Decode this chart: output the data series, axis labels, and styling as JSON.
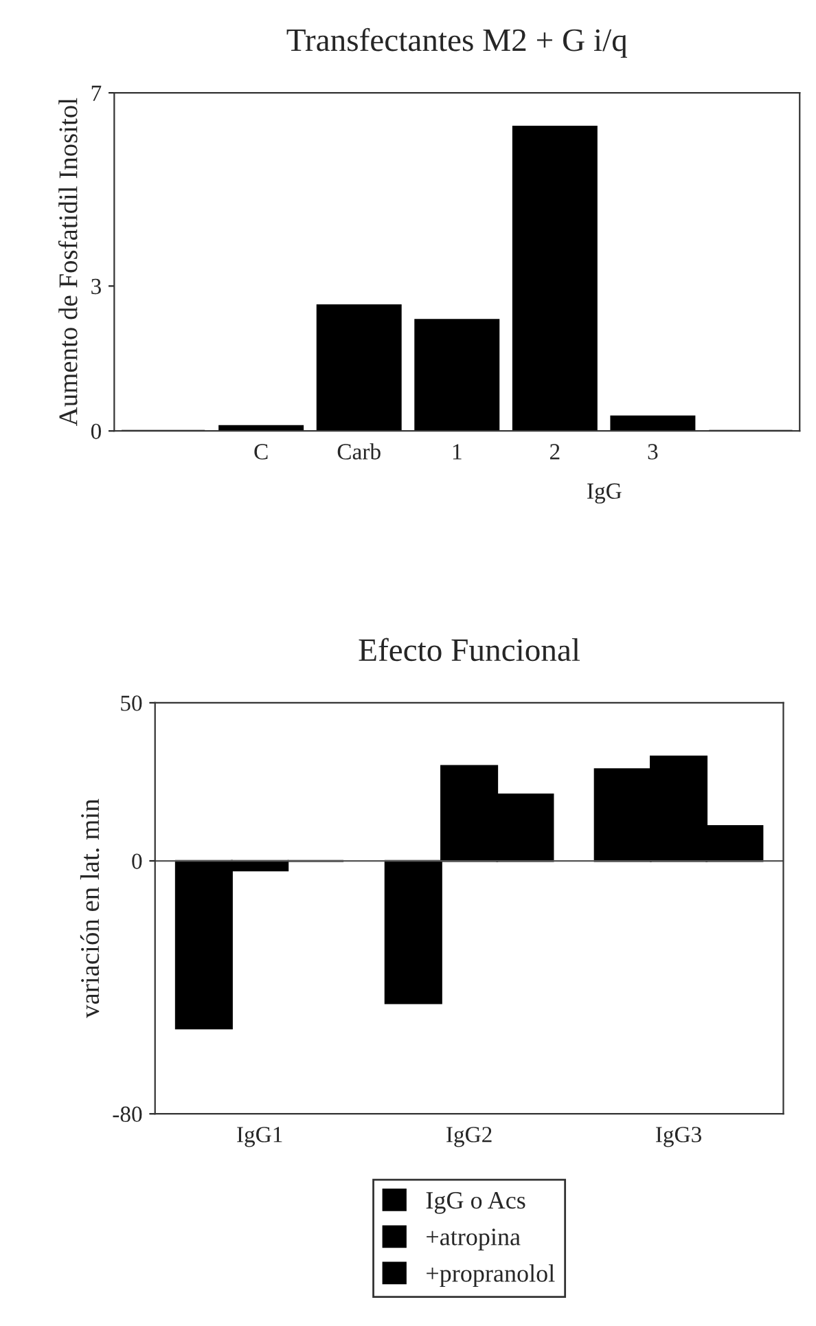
{
  "chart_data": [
    {
      "type": "bar",
      "title": "Transfectantes M2 + G i/q",
      "ylabel": "Aumento de Fosfatidil Inositol",
      "categories": [
        null,
        "C",
        "Carb",
        "1",
        "2",
        "3",
        null
      ],
      "values": [
        0,
        0.1,
        2.6,
        2.3,
        6.3,
        0.3,
        0
      ],
      "color": "#000000",
      "ylim": [
        0,
        7
      ],
      "yticks": [
        0,
        3,
        7
      ],
      "annotations": [
        "IgG"
      ]
    },
    {
      "type": "bar",
      "title": "Efecto Funcional",
      "ylabel": "variación en lat. min",
      "categories": [
        "IgG1",
        "IgG2",
        "IgG3"
      ],
      "ylim": [
        -80,
        50
      ],
      "yticks": [
        -80,
        0,
        50
      ],
      "legend": "bottom",
      "series": [
        {
          "name": "IgG o Acs",
          "color": "#000000",
          "values": [
            -53,
            -45,
            29
          ]
        },
        {
          "name": "+atropina",
          "color": "#000000",
          "values": [
            -3,
            30,
            33
          ]
        },
        {
          "name": "+propranolol",
          "color": "#000000",
          "values": [
            0,
            21,
            11
          ]
        }
      ]
    }
  ]
}
